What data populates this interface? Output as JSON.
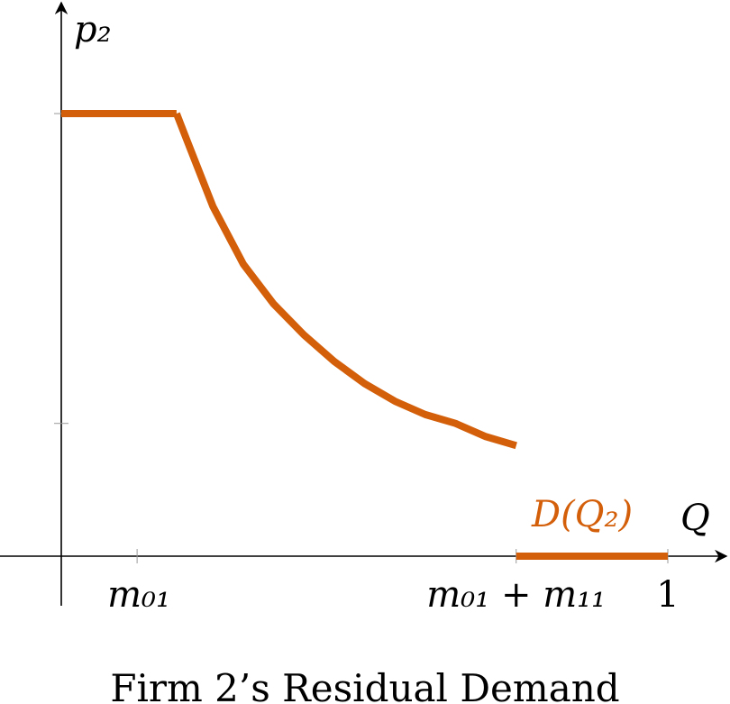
{
  "chart_data": {
    "type": "line",
    "title": "",
    "caption": "Firm 2’s Residual Demand",
    "xlabel": "Q",
    "ylabel": "p₂",
    "xlim": [
      0,
      1
    ],
    "ylim": [
      0,
      1
    ],
    "x_ticks": [
      {
        "x": 0.125,
        "label": "m₀₁"
      },
      {
        "x": 0.75,
        "label": "m₀₁ + m₁₁"
      },
      {
        "x": 1.0,
        "label": "1"
      }
    ],
    "y_ticks": [
      {
        "y": 1.0,
        "label": ""
      },
      {
        "y": 0.3,
        "label": ""
      }
    ],
    "series": [
      {
        "name": "D(Q₂)",
        "color": "#d45f0a",
        "segments": [
          [
            [
              0.0,
              1.0
            ],
            [
              0.19,
              1.0
            ]
          ],
          [
            [
              0.19,
              1.0
            ],
            [
              0.21,
              0.93
            ],
            [
              0.25,
              0.79
            ],
            [
              0.3,
              0.66
            ],
            [
              0.35,
              0.57
            ],
            [
              0.4,
              0.5
            ],
            [
              0.45,
              0.44
            ],
            [
              0.5,
              0.39
            ],
            [
              0.55,
              0.35
            ],
            [
              0.6,
              0.32
            ],
            [
              0.65,
              0.3
            ],
            [
              0.7,
              0.27
            ],
            [
              0.75,
              0.25
            ]
          ],
          [
            [
              0.75,
              0.0
            ],
            [
              1.0,
              0.0
            ]
          ]
        ]
      }
    ]
  }
}
